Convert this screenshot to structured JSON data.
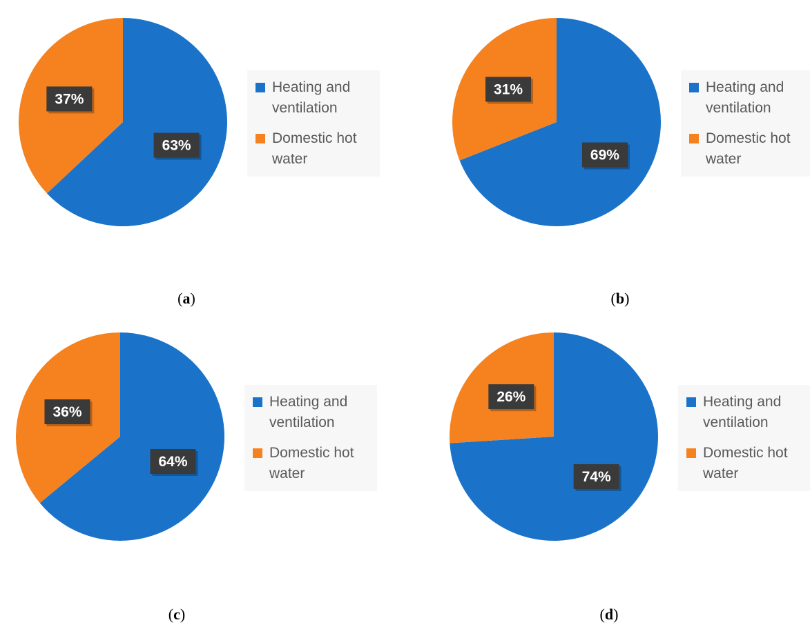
{
  "colors": {
    "heating": "#1a73c9",
    "dhw": "#f5821f",
    "label_bg": "#3a3a3a"
  },
  "chart_data": [
    {
      "type": "pie",
      "caption": "a",
      "categories": [
        "Heating and ventilation",
        "Domestic hot water"
      ],
      "values": [
        63,
        37
      ],
      "data_labels": [
        "63%",
        "37%"
      ],
      "legend_position": "right"
    },
    {
      "type": "pie",
      "caption": "b",
      "categories": [
        "Heating and ventilation",
        "Domestic hot water"
      ],
      "values": [
        69,
        31
      ],
      "data_labels": [
        "69%",
        "31%"
      ],
      "legend_position": "right"
    },
    {
      "type": "pie",
      "caption": "c",
      "categories": [
        "Heating and ventilation",
        "Domestic hot water"
      ],
      "values": [
        64,
        36
      ],
      "data_labels": [
        "64%",
        "36%"
      ],
      "legend_position": "right"
    },
    {
      "type": "pie",
      "caption": "d",
      "categories": [
        "Heating and ventilation",
        "Domestic hot water"
      ],
      "values": [
        74,
        26
      ],
      "data_labels": [
        "74%",
        "26%"
      ],
      "legend_position": "right"
    }
  ],
  "legend": {
    "heating_line1": "Heating and",
    "heating_line2": "ventilation",
    "dhw_line1": "Domestic hot",
    "dhw_line2": "water"
  }
}
